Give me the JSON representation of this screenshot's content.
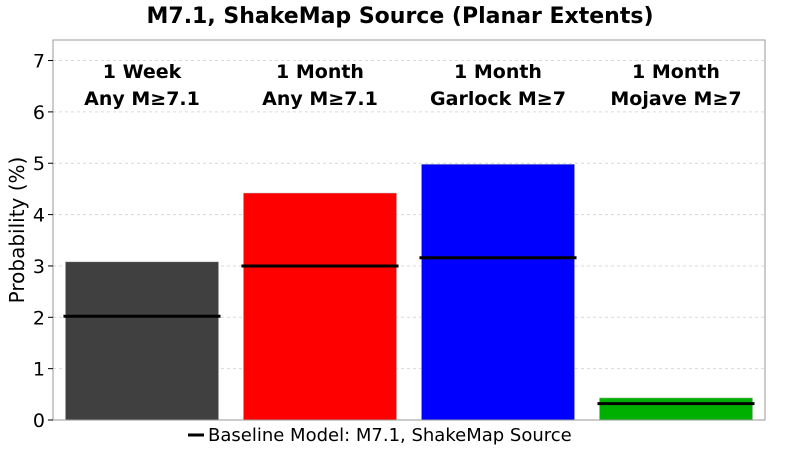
{
  "chart_data": {
    "type": "bar",
    "title": "M7.1, ShakeMap Source (Planar Extents)",
    "xlabel": "",
    "ylabel": "Probability (%)",
    "ylim": [
      0,
      7.4
    ],
    "yticks": [
      "0",
      "1",
      "2",
      "3",
      "4",
      "5",
      "6",
      "7"
    ],
    "grid": true,
    "legend_position": "bottom-center",
    "categories": [
      {
        "line1": "1 Week",
        "line2": "Any M≥7.1"
      },
      {
        "line1": "1 Month",
        "line2": "Any M≥7.1"
      },
      {
        "line1": "1 Month",
        "line2": "Garlock M≥7"
      },
      {
        "line1": "1 Month",
        "line2": "Mojave M≥7"
      }
    ],
    "values": [
      3.08,
      4.42,
      4.98,
      0.43
    ],
    "baseline_values": [
      2.02,
      3.0,
      3.16,
      0.32
    ],
    "bar_colors": [
      "#404040",
      "#ff0000",
      "#0000ff",
      "#00b000"
    ],
    "legend": [
      {
        "label": "Baseline Model: M7.1, ShakeMap Source",
        "color": "#000000"
      }
    ]
  }
}
